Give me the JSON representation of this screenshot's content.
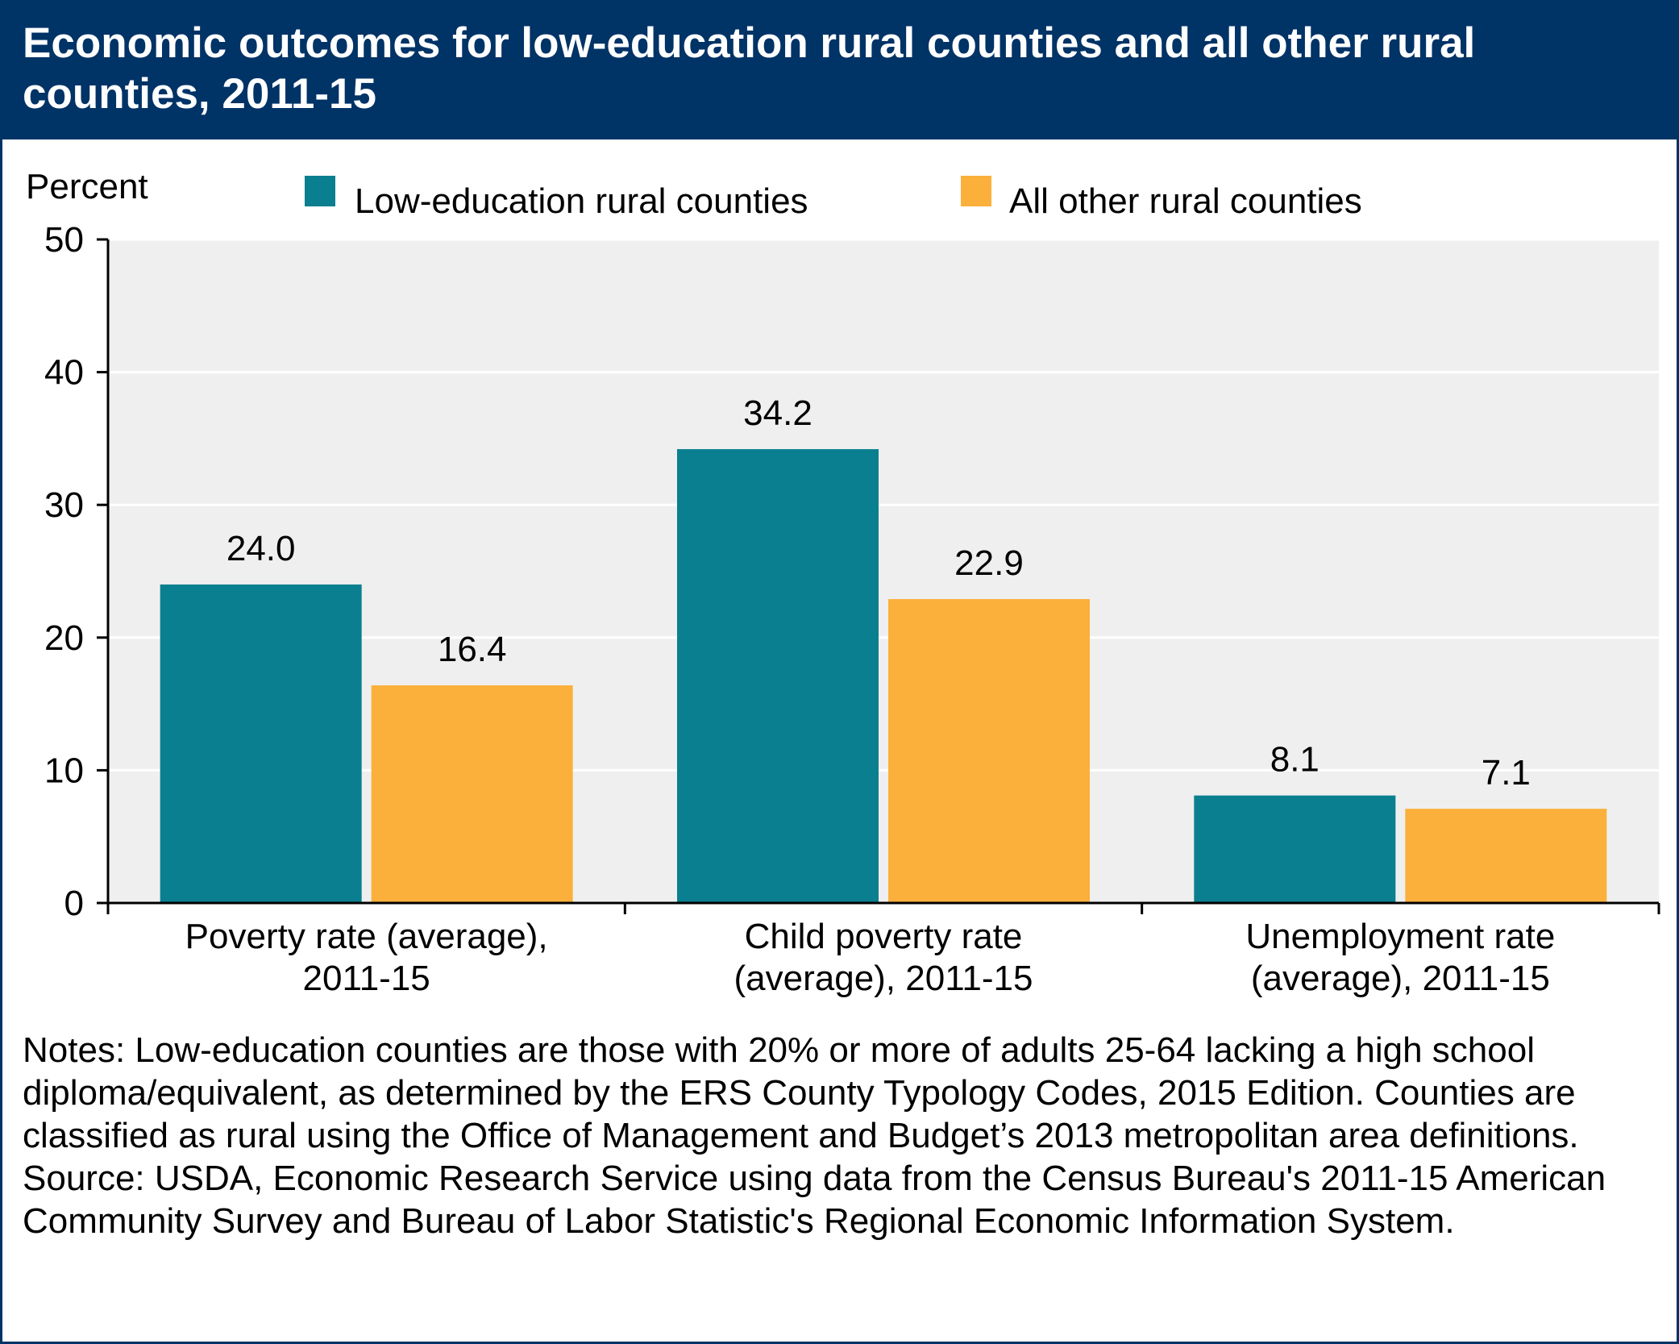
{
  "title": "Economic outcomes for low-education rural counties and all other rural counties, 2011-15",
  "notes": "Notes: Low-education counties are those with 20% or more of adults 25-64 lacking a high school diploma/equivalent, as determined by the ERS County Typology Codes, 2015 Edition. Counties are classified as rural using the Office of Management and Budget’s 2013 metropolitan area definitions.",
  "source": "Source: USDA, Economic Research Service using data from the Census Bureau's 2011-15 American Community Survey and Bureau of Labor Statistic's Regional Economic Information System.",
  "chart_data": {
    "type": "bar",
    "ylabel": "Percent",
    "xlabel": "",
    "ylim": [
      0,
      50
    ],
    "yticks": [
      0,
      10,
      20,
      30,
      40,
      50
    ],
    "grid": true,
    "legend_position": "top",
    "categories": [
      [
        "Poverty rate (average),",
        "2011-15"
      ],
      [
        "Child poverty rate",
        "(average), 2011-15"
      ],
      [
        "Unemployment rate",
        "(average), 2011-15"
      ]
    ],
    "series": [
      {
        "name": "Low-education rural counties",
        "color": "#0a7f8f",
        "values": [
          24.0,
          34.2,
          8.1
        ],
        "labels": [
          "24.0",
          "34.2",
          "8.1"
        ]
      },
      {
        "name": "All other rural counties",
        "color": "#fbb03b",
        "values": [
          16.4,
          22.9,
          7.1
        ],
        "labels": [
          "16.4",
          "22.9",
          "7.1"
        ]
      }
    ],
    "plot_background": "#efefef"
  }
}
